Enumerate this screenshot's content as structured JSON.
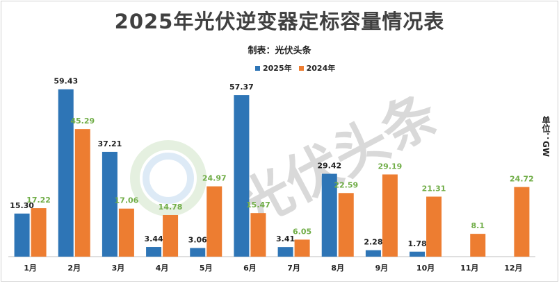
{
  "chart_data": {
    "type": "bar",
    "title": "2025年光伏逆变器定标容量情况表",
    "subtitle": "制表：光伏头条",
    "unit_label": "单位：GW",
    "categories": [
      "1月",
      "2月",
      "3月",
      "4月",
      "5月",
      "6月",
      "7月",
      "8月",
      "9月",
      "10月",
      "11月",
      "12月"
    ],
    "series": [
      {
        "name": "2025年",
        "color": "#2e75b6",
        "values": [
          15.3,
          59.43,
          37.21,
          3.44,
          3.06,
          57.37,
          3.41,
          29.42,
          2.28,
          1.78,
          null,
          null
        ],
        "labels": [
          "15.30",
          "59.43",
          "37.21",
          "3.44",
          "3.06",
          "57.37",
          "3.41",
          "29.42",
          "2.28",
          "1.78",
          "",
          ""
        ]
      },
      {
        "name": "2024年",
        "color": "#ed7d31",
        "values": [
          17.22,
          45.29,
          17.06,
          14.78,
          24.97,
          15.47,
          6.05,
          22.59,
          29.19,
          21.31,
          8.1,
          24.72
        ],
        "labels": [
          "17.22",
          "45.29",
          "17.06",
          "14.78",
          "24.97",
          "15.47",
          "6.05",
          "22.59",
          "29.19",
          "21.31",
          "8.1",
          "24.72"
        ]
      }
    ],
    "ylim": [
      0,
      64
    ],
    "grid": false,
    "legend_position": "top-center",
    "label_colors": {
      "series_2025": "#222222",
      "series_2024": "#70ad47"
    }
  },
  "watermark": {
    "text": "光伏头条"
  }
}
